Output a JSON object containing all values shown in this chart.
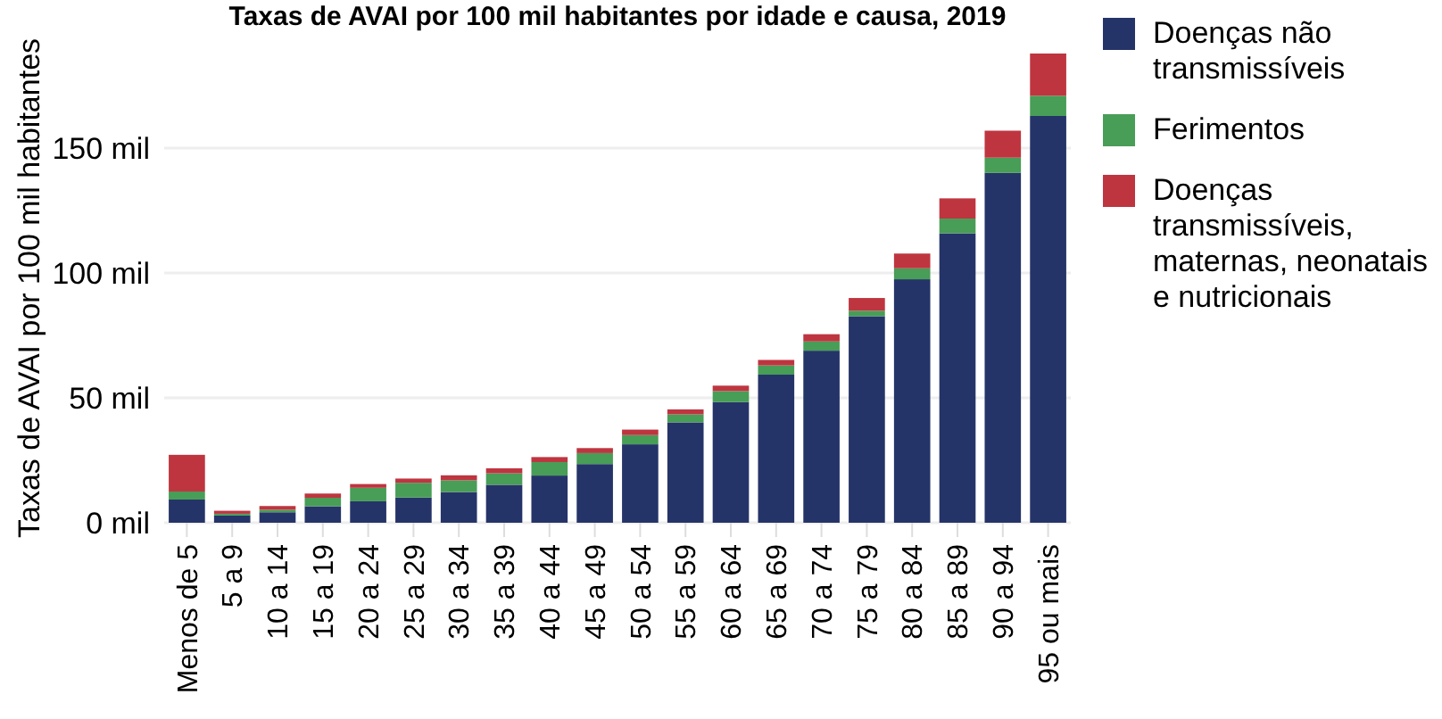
{
  "chart_data": {
    "type": "bar",
    "stacked": true,
    "title": "Taxas de AVAI por 100 mil habitantes por idade e causa, 2019",
    "ylabel": "Taxas de AVAI por 100 mil habitantes",
    "categories": [
      "Menos de 5",
      "5 a 9",
      "10 a 14",
      "15 a 19",
      "20 a 24",
      "25 a 29",
      "30 a 34",
      "35 a 39",
      "40 a 44",
      "45 a 49",
      "50 a 54",
      "55 a 59",
      "60 a 64",
      "65 a 69",
      "70 a 74",
      "75 a 79",
      "80 a 84",
      "85 a 89",
      "90 a 94",
      "95 ou mais"
    ],
    "series": [
      {
        "name": "Doenças não transmissíveis",
        "color": "#253468",
        "values": [
          9.3,
          2.9,
          4.2,
          6.6,
          8.6,
          10.1,
          12.3,
          15.2,
          18.9,
          23.5,
          31.4,
          40.2,
          48.3,
          59.3,
          68.9,
          82.7,
          97.5,
          115.9,
          140.1,
          162.9
        ]
      },
      {
        "name": "Ferimentos",
        "color": "#489d57",
        "values": [
          3.2,
          0.7,
          1.0,
          3.4,
          5.4,
          5.9,
          4.7,
          4.6,
          5.4,
          4.4,
          3.7,
          3.2,
          4.4,
          3.7,
          3.7,
          2.2,
          4.4,
          5.9,
          6.1,
          8.1
        ]
      },
      {
        "name": "Doenças transmissíveis, maternas, neonatais e nutricionais",
        "color": "#be3540",
        "values": [
          14.7,
          1.2,
          1.5,
          1.7,
          1.5,
          1.7,
          2.0,
          2.0,
          2.0,
          2.0,
          2.2,
          2.0,
          2.2,
          2.2,
          2.9,
          5.1,
          5.9,
          8.1,
          10.8,
          16.9
        ]
      }
    ],
    "ylim": [
      0,
      187.9
    ],
    "yticks": [
      {
        "value": 0,
        "label": "0 mil"
      },
      {
        "value": 50,
        "label": "50 mil"
      },
      {
        "value": 100,
        "label": "100 mil"
      },
      {
        "value": 150,
        "label": "150 mil"
      }
    ],
    "grid": "y",
    "legend": "right"
  }
}
